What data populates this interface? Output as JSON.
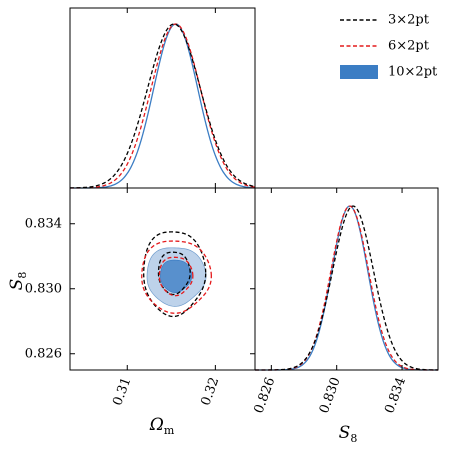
{
  "chart_data": {
    "type": "corner",
    "parameters": [
      {
        "key": "omega_m",
        "label": "Ω",
        "label_sub": "m",
        "range": [
          0.3035,
          0.3245
        ],
        "ticks": [
          0.31,
          0.32
        ],
        "tick_labels": [
          "0.31",
          "0.32"
        ]
      },
      {
        "key": "s8",
        "label": "S",
        "label_sub": "8",
        "range": [
          0.825,
          0.8362
        ],
        "ticks": [
          0.826,
          0.83,
          0.834
        ],
        "tick_labels": [
          "0.826",
          "0.830",
          "0.834"
        ]
      }
    ],
    "series": [
      {
        "name": "3×2pt",
        "color": "#000000",
        "style": "dashed",
        "mean": {
          "omega_m": 0.3153,
          "s8": 0.831
        },
        "sigma": {
          "omega_m": 0.003,
          "s8": 0.00125
        },
        "contour_levels": [
          {
            "a": 0.00352,
            "b": 0.0026
          },
          {
            "a": 0.0018,
            "b": 0.0013
          }
        ]
      },
      {
        "name": "6×2pt",
        "color": "#e41a1c",
        "style": "dashed",
        "mean": {
          "omega_m": 0.3155,
          "s8": 0.8308
        },
        "sigma": {
          "omega_m": 0.0028,
          "s8": 0.00115
        },
        "contour_levels": [
          {
            "a": 0.00395,
            "b": 0.00222
          },
          {
            "a": 0.0019,
            "b": 0.00118
          }
        ]
      },
      {
        "name": "10×2pt",
        "color": "#3b7dc4",
        "style": "filled",
        "mean": {
          "omega_m": 0.3155,
          "s8": 0.8308
        },
        "sigma": {
          "omega_m": 0.0025,
          "s8": 0.0011
        },
        "contour_levels": [
          {
            "a": 0.00335,
            "b": 0.0018
          },
          {
            "a": 0.00178,
            "b": 0.001
          }
        ]
      }
    ],
    "legend_position": "top-right",
    "grid": false
  }
}
